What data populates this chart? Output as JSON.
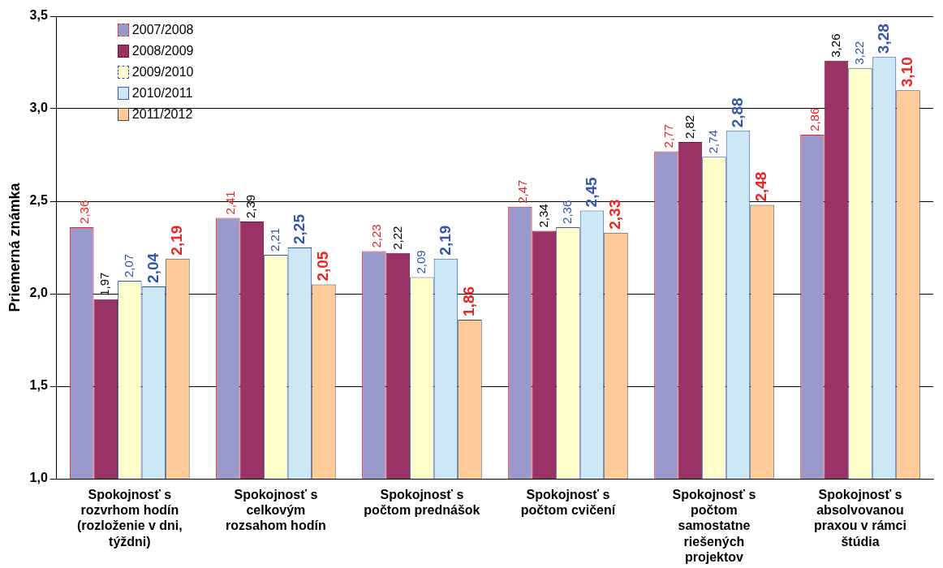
{
  "chart_data": {
    "type": "bar",
    "ylabel": "Priemerná známka",
    "categories": [
      "Spokojnosť s rozvrhom hodín (rozloženie v dni, týždni)",
      "Spokojnosť s celkovým rozsahom hodín",
      "Spokojnosť s počtom prednášok",
      "Spokojnosť s počtom cvičení",
      "Spokojnosť s počtom samostatne riešených projektov",
      "Spokojnosť s absolvovanou praxou v rámci štúdia"
    ],
    "series": [
      {
        "name": "2007/2008",
        "color": "#9999cc",
        "values": [
          2.36,
          2.41,
          2.23,
          2.47,
          2.77,
          2.86
        ],
        "value_labels": [
          "2,36",
          "2,41",
          "2,23",
          "2,47",
          "2,77",
          "2,86"
        ]
      },
      {
        "name": "2008/2009",
        "color": "#993366",
        "values": [
          1.97,
          2.39,
          2.22,
          2.34,
          2.82,
          3.26
        ],
        "value_labels": [
          "1,97",
          "2,39",
          "2,22",
          "2,34",
          "2,82",
          "3,26"
        ]
      },
      {
        "name": "2009/2010",
        "color": "#ffffcc",
        "values": [
          2.07,
          2.21,
          2.09,
          2.36,
          2.74,
          3.22
        ],
        "value_labels": [
          "2,07",
          "2,21",
          "2,09",
          "2,36",
          "2,74",
          "3,22"
        ]
      },
      {
        "name": "2010/2011",
        "color": "#cce8f4",
        "values": [
          2.04,
          2.25,
          2.19,
          2.45,
          2.88,
          3.28
        ],
        "value_labels": [
          "2,04",
          "2,25",
          "2,19",
          "2,45",
          "2,88",
          "3,28"
        ]
      },
      {
        "name": "2011/2012",
        "color": "#ffcc99",
        "values": [
          2.19,
          2.05,
          1.86,
          2.33,
          2.48,
          3.1
        ],
        "value_labels": [
          "2,19",
          "2,05",
          "1,86",
          "2,33",
          "2,48",
          "3,10"
        ]
      }
    ],
    "ylim": [
      1,
      3.5
    ],
    "yticks": [
      {
        "value": 1,
        "label": "1,0"
      },
      {
        "value": 1.5,
        "label": "1,5"
      },
      {
        "value": 2,
        "label": "2,0"
      },
      {
        "value": 2.5,
        "label": "2,5"
      },
      {
        "value": 3,
        "label": "3,0"
      },
      {
        "value": 3.5,
        "label": "3,5"
      }
    ],
    "grid": "y",
    "legend": "top left"
  }
}
